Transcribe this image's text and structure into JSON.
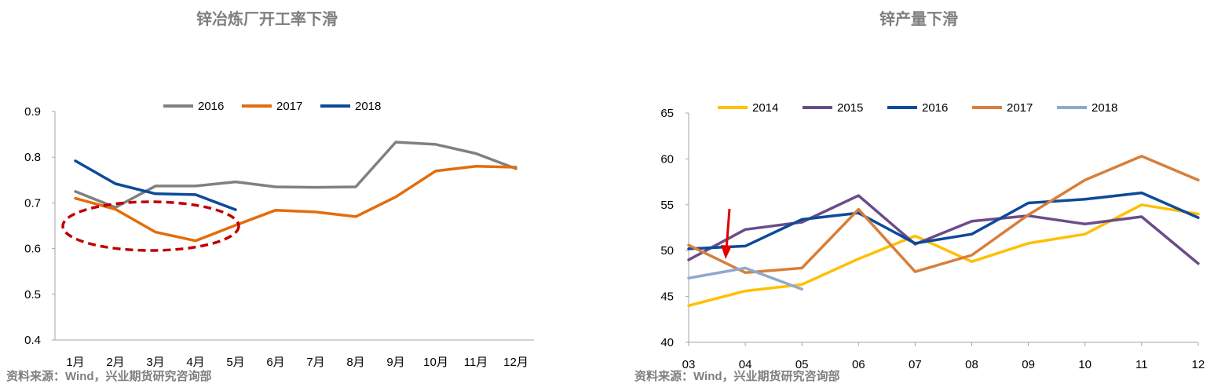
{
  "charts": [
    {
      "title": "锌冶炼厂开工率下滑",
      "source": "资料来源：Wind，兴业期货研究咨询部"
    },
    {
      "title": "锌产量下滑",
      "source": "资料来源：Wind，兴业期货研究咨询部"
    }
  ],
  "chart_data": [
    {
      "type": "line",
      "title": "锌冶炼厂开工率下滑",
      "categories": [
        "1月",
        "2月",
        "3月",
        "4月",
        "5月",
        "6月",
        "7月",
        "8月",
        "9月",
        "10月",
        "11月",
        "12月"
      ],
      "ylim": [
        0.4,
        0.9
      ],
      "yticks": [
        "0.9",
        "0.8",
        "0.7",
        "0.6",
        "0.5",
        "0.4"
      ],
      "legend_position": "top-center",
      "annotation": "red-dashed-ellipse",
      "series": [
        {
          "name": "2016",
          "color": "#808080",
          "values": [
            0.725,
            0.69,
            0.737,
            0.737,
            0.746,
            0.735,
            0.734,
            0.735,
            0.833,
            0.828,
            0.808,
            0.775
          ]
        },
        {
          "name": "2017",
          "color": "#e46c0a",
          "values": [
            0.71,
            0.686,
            0.636,
            0.617,
            0.651,
            0.684,
            0.68,
            0.67,
            0.713,
            0.77,
            0.78,
            0.778
          ]
        },
        {
          "name": "2018",
          "color": "#0d4a99",
          "values": [
            0.792,
            0.742,
            0.72,
            0.718,
            0.685,
            null,
            null,
            null,
            null,
            null,
            null,
            null
          ]
        }
      ]
    },
    {
      "type": "line",
      "title": "锌产量下滑",
      "categories": [
        "03",
        "04",
        "05",
        "06",
        "07",
        "08",
        "09",
        "10",
        "11",
        "12"
      ],
      "ylim": [
        40,
        65
      ],
      "yticks": [
        "65",
        "60",
        "55",
        "50",
        "45",
        "40"
      ],
      "legend_position": "top-center",
      "annotation": "red-arrow",
      "series": [
        {
          "name": "2014",
          "color": "#ffc000",
          "values": [
            44.0,
            45.6,
            46.3,
            49.1,
            51.6,
            48.8,
            50.8,
            51.8,
            55.0,
            54.0
          ]
        },
        {
          "name": "2015",
          "color": "#6b4c8a",
          "values": [
            49.0,
            52.3,
            53.1,
            56.0,
            50.7,
            53.2,
            53.8,
            52.9,
            53.7,
            48.6
          ]
        },
        {
          "name": "2016",
          "color": "#0d4a99",
          "values": [
            50.2,
            50.5,
            53.4,
            54.1,
            50.8,
            51.8,
            55.2,
            55.6,
            56.3,
            53.6
          ]
        },
        {
          "name": "2017",
          "color": "#d77f3a",
          "values": [
            50.6,
            47.6,
            48.1,
            54.5,
            47.7,
            49.5,
            53.9,
            57.7,
            60.3,
            57.7
          ]
        },
        {
          "name": "2018",
          "color": "#8fa9cc",
          "values": [
            47.0,
            48.1,
            45.8,
            null,
            null,
            null,
            null,
            null,
            null,
            null
          ]
        }
      ]
    }
  ]
}
